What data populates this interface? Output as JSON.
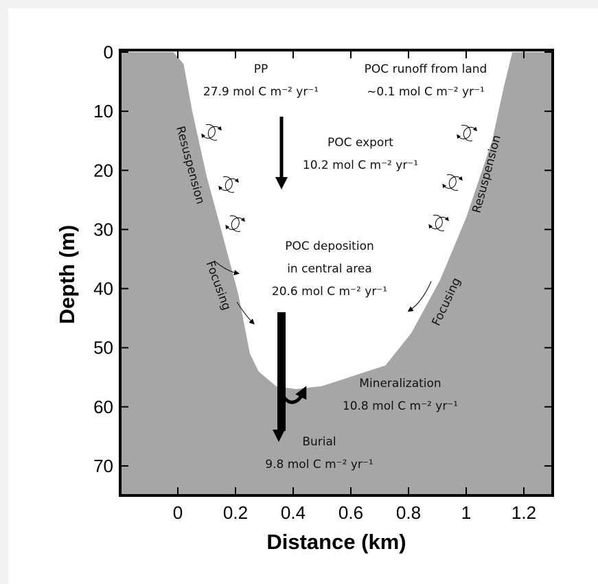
{
  "chart_data": {
    "type": "profile",
    "x_label": "Distance (km)",
    "y_label": "Depth (m)",
    "xlim": [
      -0.2,
      1.3
    ],
    "ylim": [
      0,
      75
    ],
    "invert_y": true,
    "xticks": [
      0,
      0.2,
      0.4,
      0.6,
      0.8,
      1,
      1.2
    ],
    "yticks": [
      0,
      10,
      20,
      30,
      40,
      50,
      60,
      70
    ],
    "color": "#a6a6a6",
    "series": [
      {
        "x": [
          -0.015,
          0.02,
          0.05,
          0.1,
          0.15,
          0.21,
          0.25,
          0.28,
          0.34,
          0.41,
          0.5,
          0.72,
          0.81,
          0.91,
          1.0,
          1.09,
          1.13,
          1.16
        ],
        "values": [
          0,
          2,
          10,
          21,
          30,
          41,
          51,
          54,
          56.5,
          57,
          56.5,
          53,
          47.5,
          38.5,
          28,
          15,
          6,
          0
        ]
      }
    ],
    "annotations": {
      "pp": [
        "PP",
        "27.9 mol C m⁻² yr⁻¹"
      ],
      "runoff": [
        "POC runoff from land",
        "~0.1 mol  C m⁻² yr⁻¹"
      ],
      "export": [
        "POC export",
        "10.2 mol C m⁻² yr⁻¹"
      ],
      "deposition": [
        "POC deposition",
        "in central area",
        "20.6 mol C m⁻² yr⁻¹"
      ],
      "mineralization": [
        "Mineralization",
        "10.8 mol C m⁻² yr⁻¹"
      ],
      "burial": [
        "Burial",
        "9.8 mol C m⁻² yr⁻¹"
      ],
      "resuspension_left": "Resuspension",
      "resuspension_right": "Resuspension",
      "focusing_left": "Focusing",
      "focusing_right": "Focusing"
    }
  }
}
